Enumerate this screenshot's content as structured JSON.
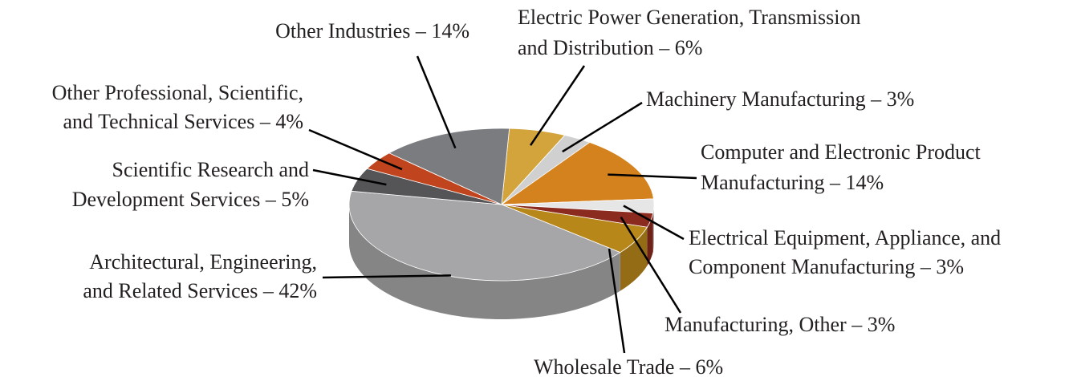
{
  "chart_data": {
    "type": "pie",
    "categories": [
      "Electric Power Generation, Transmission and Distribution – 6%",
      "Machinery Manufacturing – 3%",
      "Computer and Electronic Product Manufacturing – 14%",
      "Electrical Equipment, Appliance, and Component Manufacturing – 3%",
      "Manufacturing, Other – 3%",
      "Wholesale Trade – 6%",
      "Architectural, Engineering, and Related Services – 42%",
      "Scientific Research and Development Services – 5%",
      "Other Professional, Scientific, and Technical Services – 4%",
      "Other Industries – 14%"
    ],
    "values": [
      6,
      3,
      14,
      3,
      3,
      6,
      42,
      5,
      4,
      14
    ],
    "colors": [
      "#d4a43c",
      "#d0d0d0",
      "#d4821e",
      "#e6e6e6",
      "#8b2a1e",
      "#b8871a",
      "#a6a6a8",
      "#555557",
      "#c0441e",
      "#7b7c7f"
    ]
  }
}
